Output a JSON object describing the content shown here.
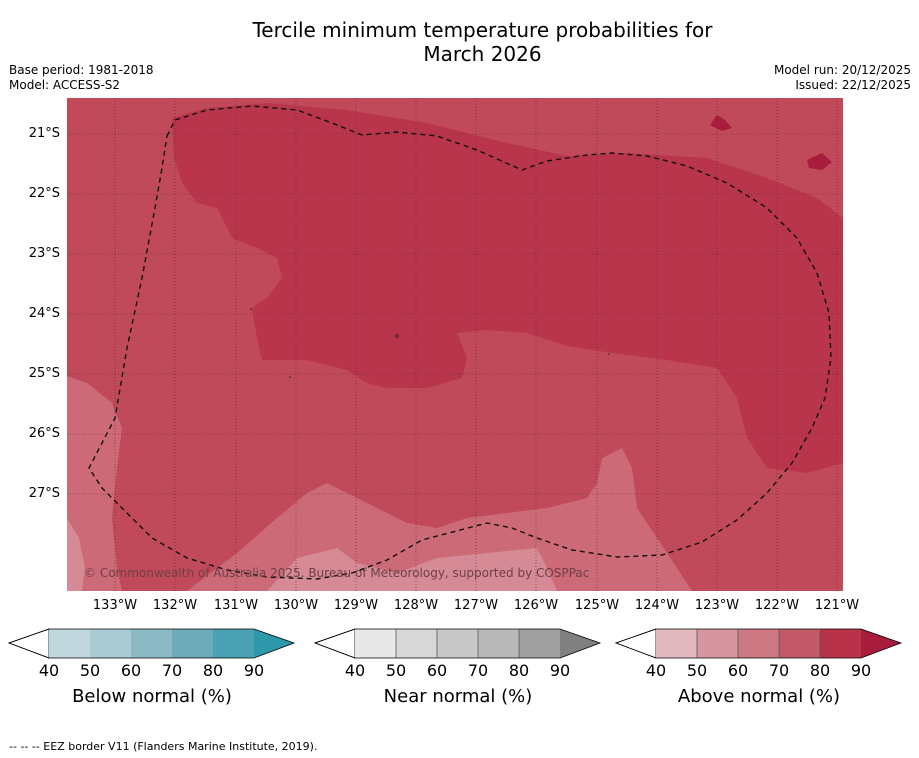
{
  "title_line1": "Tercile minimum temperature probabilities for",
  "title_line2": "March 2026",
  "base_period": "Base period: 1981-2018",
  "model": "Model: ACCESS-S2",
  "model_run": "Model run: 20/12/2025",
  "issued": "Issued: 22/12/2025",
  "copyright": "© Commonwealth of Australia 2025, Bureau of Meteorology, supported by COSPPac",
  "lat_labels": [
    "21°S",
    "22°S",
    "23°S",
    "24°S",
    "25°S",
    "26°S",
    "27°S"
  ],
  "lon_labels": [
    "133°W",
    "132°W",
    "131°W",
    "130°W",
    "129°W",
    "128°W",
    "127°W",
    "126°W",
    "125°W",
    "124°W",
    "123°W",
    "122°W",
    "121°W"
  ],
  "legends": [
    {
      "label": "Below normal (%)",
      "ticks": [
        "40",
        "50",
        "60",
        "70",
        "80",
        "90"
      ],
      "colors": [
        "#c0d7dd",
        "#a8cbd2",
        "#8bb9c4",
        "#6eabb8",
        "#4aa2b2",
        "#2e98aa"
      ]
    },
    {
      "label": "Near normal (%)",
      "ticks": [
        "40",
        "50",
        "60",
        "70",
        "80",
        "90"
      ],
      "colors": [
        "#e8e8e8",
        "#d8d8d8",
        "#c8c8c8",
        "#b8b8b8",
        "#a0a0a0",
        "#808080"
      ]
    },
    {
      "label": "Above normal (%)",
      "ticks": [
        "40",
        "50",
        "60",
        "70",
        "80",
        "90"
      ],
      "colors": [
        "#e2b8bf",
        "#d7969f",
        "#cd7883",
        "#c25a69",
        "#b8324a",
        "#a81c3c"
      ]
    }
  ],
  "footnote": "--  --  -- EEZ border V11 (Flanders Marine Institute, 2019)."
}
